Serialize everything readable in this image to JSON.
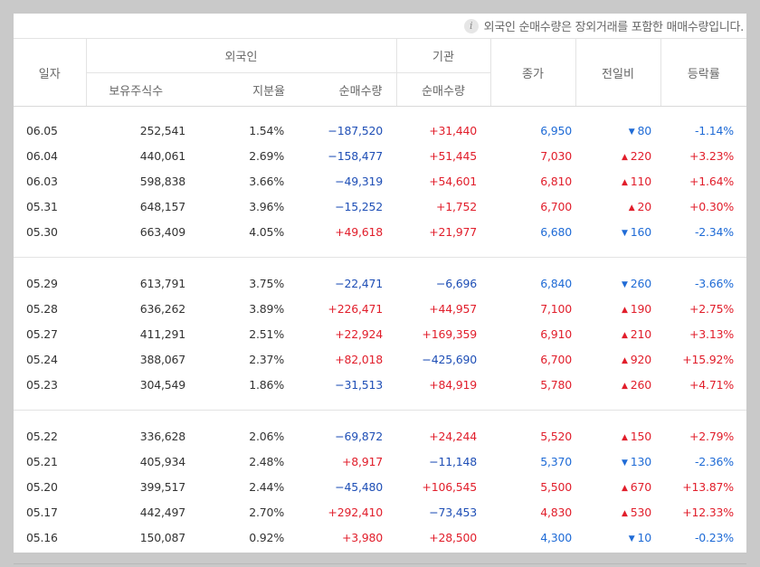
{
  "notice": {
    "icon": "info-icon",
    "text": "외국인 순매수량은 장외거래를 포함한 매매수량입니다."
  },
  "headers": {
    "date": "일자",
    "foreign": "외국인",
    "institution": "기관",
    "close": "종가",
    "change": "전일비",
    "rate": "등락률",
    "holdings": "보유주식수",
    "share": "지분율",
    "foreign_net": "순매수량",
    "inst_net": "순매수량"
  },
  "colors": {
    "up": "#e11e2b",
    "down": "#1f4fb6"
  },
  "groups": [
    [
      {
        "date": "06.05",
        "holdings": "252,541",
        "share": "1.54%",
        "foreign": "−187,520",
        "inst": "+31,440",
        "close": "6,950",
        "dir": "down",
        "change": "80",
        "rate": "-1.14%"
      },
      {
        "date": "06.04",
        "holdings": "440,061",
        "share": "2.69%",
        "foreign": "−158,477",
        "inst": "+51,445",
        "close": "7,030",
        "dir": "up",
        "change": "220",
        "rate": "+3.23%"
      },
      {
        "date": "06.03",
        "holdings": "598,838",
        "share": "3.66%",
        "foreign": "−49,319",
        "inst": "+54,601",
        "close": "6,810",
        "dir": "up",
        "change": "110",
        "rate": "+1.64%"
      },
      {
        "date": "05.31",
        "holdings": "648,157",
        "share": "3.96%",
        "foreign": "−15,252",
        "inst": "+1,752",
        "close": "6,700",
        "dir": "up",
        "change": "20",
        "rate": "+0.30%"
      },
      {
        "date": "05.30",
        "holdings": "663,409",
        "share": "4.05%",
        "foreign": "+49,618",
        "inst": "+21,977",
        "close": "6,680",
        "dir": "down",
        "change": "160",
        "rate": "-2.34%"
      }
    ],
    [
      {
        "date": "05.29",
        "holdings": "613,791",
        "share": "3.75%",
        "foreign": "−22,471",
        "inst": "−6,696",
        "close": "6,840",
        "dir": "down",
        "change": "260",
        "rate": "-3.66%"
      },
      {
        "date": "05.28",
        "holdings": "636,262",
        "share": "3.89%",
        "foreign": "+226,471",
        "inst": "+44,957",
        "close": "7,100",
        "dir": "up",
        "change": "190",
        "rate": "+2.75%"
      },
      {
        "date": "05.27",
        "holdings": "411,291",
        "share": "2.51%",
        "foreign": "+22,924",
        "inst": "+169,359",
        "close": "6,910",
        "dir": "up",
        "change": "210",
        "rate": "+3.13%"
      },
      {
        "date": "05.24",
        "holdings": "388,067",
        "share": "2.37%",
        "foreign": "+82,018",
        "inst": "−425,690",
        "close": "6,700",
        "dir": "up",
        "change": "920",
        "rate": "+15.92%"
      },
      {
        "date": "05.23",
        "holdings": "304,549",
        "share": "1.86%",
        "foreign": "−31,513",
        "inst": "+84,919",
        "close": "5,780",
        "dir": "up",
        "change": "260",
        "rate": "+4.71%"
      }
    ],
    [
      {
        "date": "05.22",
        "holdings": "336,628",
        "share": "2.06%",
        "foreign": "−69,872",
        "inst": "+24,244",
        "close": "5,520",
        "dir": "up",
        "change": "150",
        "rate": "+2.79%"
      },
      {
        "date": "05.21",
        "holdings": "405,934",
        "share": "2.48%",
        "foreign": "+8,917",
        "inst": "−11,148",
        "close": "5,370",
        "dir": "down",
        "change": "130",
        "rate": "-2.36%"
      },
      {
        "date": "05.20",
        "holdings": "399,517",
        "share": "2.44%",
        "foreign": "−45,480",
        "inst": "+106,545",
        "close": "5,500",
        "dir": "up",
        "change": "670",
        "rate": "+13.87%"
      },
      {
        "date": "05.17",
        "holdings": "442,497",
        "share": "2.70%",
        "foreign": "+292,410",
        "inst": "−73,453",
        "close": "4,830",
        "dir": "up",
        "change": "530",
        "rate": "+12.33%"
      },
      {
        "date": "05.16",
        "holdings": "150,087",
        "share": "0.92%",
        "foreign": "+3,980",
        "inst": "+28,500",
        "close": "4,300",
        "dir": "down",
        "change": "10",
        "rate": "-0.23%"
      }
    ]
  ]
}
